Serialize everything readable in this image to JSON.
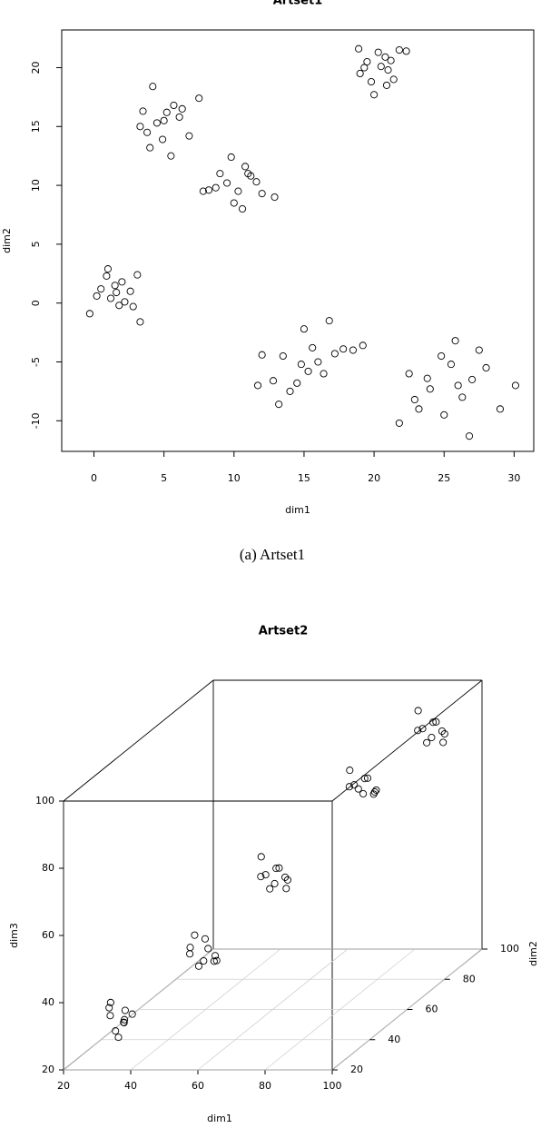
{
  "chart_data": [
    {
      "type": "scatter",
      "title": "Artset1",
      "x_label": "dim1",
      "y_label": "dim2",
      "caption": "(a) Artset1",
      "x": [
        0.5,
        1.2,
        2.0,
        1.8,
        0.9,
        2.6,
        3.1,
        0.2,
        1.5,
        2.2,
        -0.3,
        1.0,
        2.8,
        3.3,
        1.6,
        4.5,
        5.2,
        3.8,
        6.1,
        4.9,
        5.7,
        3.3,
        6.8,
        4.2,
        5.5,
        7.5,
        4.0,
        6.3,
        3.5,
        5.0,
        9.5,
        10.3,
        11.2,
        8.7,
        10.8,
        12.0,
        9.0,
        10.0,
        11.6,
        8.2,
        12.9,
        9.8,
        10.6,
        7.8,
        11.0,
        19.5,
        20.3,
        21.0,
        19.0,
        20.8,
        21.8,
        19.8,
        20.5,
        18.9,
        21.4,
        20.0,
        22.3,
        19.3,
        20.9,
        21.2,
        13.5,
        14.8,
        15.6,
        16.4,
        17.2,
        12.8,
        14.0,
        15.0,
        16.0,
        17.8,
        12.0,
        13.2,
        18.5,
        14.5,
        16.8,
        15.3,
        19.2,
        11.7,
        22.5,
        24.0,
        25.5,
        26.3,
        27.0,
        23.2,
        24.8,
        26.0,
        28.0,
        21.8,
        22.9,
        25.0,
        27.5,
        29.0,
        26.8,
        23.8,
        30.1,
        25.8
      ],
      "values": [
        1.2,
        0.4,
        1.8,
        -0.2,
        2.3,
        1.0,
        2.4,
        0.6,
        1.5,
        0.1,
        -0.9,
        2.9,
        -0.3,
        -1.6,
        0.9,
        15.3,
        16.2,
        14.5,
        15.8,
        13.9,
        16.8,
        15.0,
        14.2,
        18.4,
        12.5,
        17.4,
        13.2,
        16.5,
        16.3,
        15.5,
        10.2,
        9.5,
        10.8,
        9.8,
        11.6,
        9.3,
        11.0,
        8.5,
        10.3,
        9.6,
        9.0,
        12.4,
        8.0,
        9.5,
        11.0,
        20.5,
        21.3,
        19.8,
        19.5,
        20.9,
        21.5,
        18.8,
        20.1,
        21.6,
        19.0,
        17.7,
        21.4,
        20.0,
        18.5,
        20.6,
        -4.5,
        -5.2,
        -3.8,
        -6.0,
        -4.3,
        -6.6,
        -7.5,
        -2.2,
        -5.0,
        -3.9,
        -4.4,
        -8.6,
        -4.0,
        -6.8,
        -1.5,
        -5.8,
        -3.6,
        -7.0,
        -6.0,
        -7.3,
        -5.2,
        -8.0,
        -6.5,
        -9.0,
        -4.5,
        -7.0,
        -5.5,
        -10.2,
        -8.2,
        -9.5,
        -4.0,
        -9.0,
        -11.3,
        -6.4,
        -7.0,
        -3.2
      ],
      "color": "#000000",
      "xlim": [
        -2.3,
        31.4
      ],
      "ylim": [
        -12.6,
        23.2
      ],
      "xticks": [
        0,
        5,
        10,
        15,
        20,
        25,
        30
      ],
      "yticks": [
        -10,
        -5,
        0,
        5,
        10,
        15,
        20
      ]
    },
    {
      "type": "scatter3d",
      "title": "Artset2",
      "x_label": "dim1",
      "y_label": "dim2",
      "z_label": "dim3",
      "x": [
        30,
        33,
        35,
        28,
        31,
        34,
        29,
        36,
        32,
        33,
        47,
        50,
        53,
        48,
        51,
        55,
        46,
        52,
        49,
        54,
        57,
        60,
        63,
        58,
        61,
        65,
        56,
        62,
        59,
        64,
        75,
        78,
        81,
        76,
        79,
        83,
        74,
        80,
        77,
        82,
        87,
        90,
        93,
        88,
        91,
        95,
        86,
        92,
        89,
        94
      ],
      "y": [
        27,
        29,
        26,
        30,
        28,
        27,
        29,
        28,
        31,
        26,
        39,
        41,
        38,
        42,
        40,
        39,
        41,
        43,
        38,
        40,
        59,
        61,
        58,
        62,
        60,
        59,
        61,
        63,
        58,
        60,
        74,
        76,
        73,
        77,
        75,
        74,
        76,
        78,
        73,
        75,
        89,
        91,
        88,
        92,
        90,
        89,
        91,
        93,
        88,
        90
      ],
      "z": [
        33,
        30,
        35,
        34,
        28,
        31,
        36,
        33,
        30,
        27,
        46,
        43,
        48,
        41,
        50,
        44,
        47,
        42,
        52,
        45,
        60,
        57,
        63,
        55,
        62,
        59,
        65,
        58,
        61,
        56,
        80,
        77,
        83,
        78,
        82,
        79,
        84,
        76,
        81,
        78,
        90,
        87,
        93,
        85,
        92,
        89,
        95,
        88,
        91,
        86
      ],
      "color": "#000000",
      "xlim": [
        20,
        100
      ],
      "ylim": [
        20,
        100
      ],
      "zlim": [
        20,
        100
      ],
      "xticks": [
        20,
        40,
        60,
        80,
        100
      ],
      "yticks": [
        20,
        40,
        60,
        80,
        100
      ],
      "zticks": [
        20,
        40,
        60,
        80,
        100
      ],
      "grid": true
    }
  ]
}
